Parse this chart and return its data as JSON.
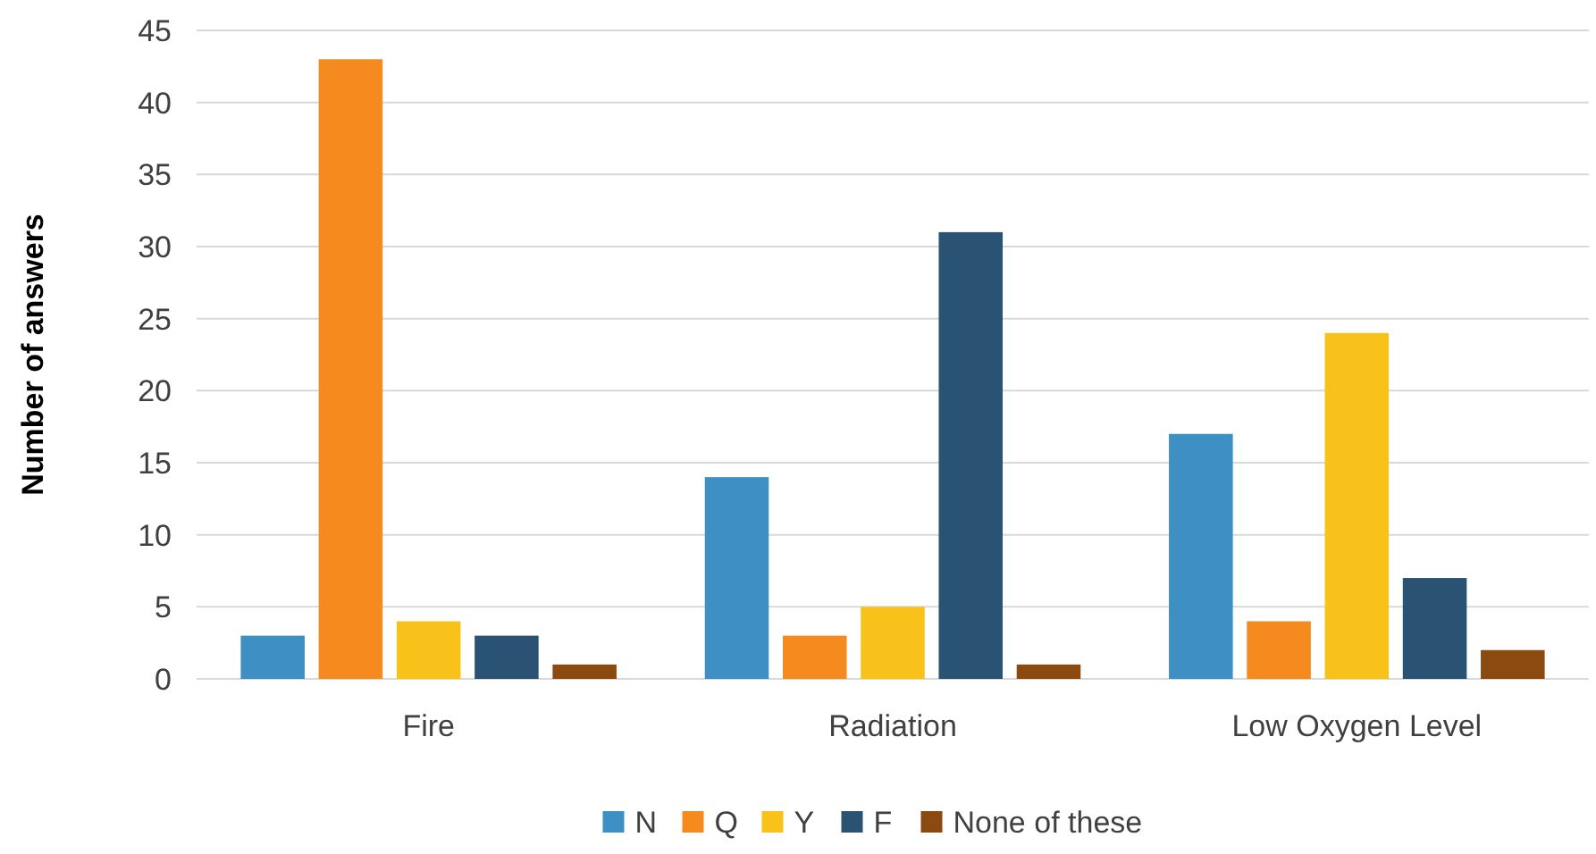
{
  "chart_data": {
    "type": "bar",
    "ylabel": "Number of answers",
    "categories": [
      "Fire",
      "Radiation",
      "Low Oxygen Level"
    ],
    "series": [
      {
        "name": "N",
        "color": "#3d8fc4",
        "values": [
          3,
          14,
          17
        ]
      },
      {
        "name": "Q",
        "color": "#f58a1f",
        "values": [
          43,
          3,
          4
        ]
      },
      {
        "name": "Y",
        "color": "#f8c21a",
        "values": [
          4,
          5,
          24
        ]
      },
      {
        "name": "F",
        "color": "#2a5273",
        "values": [
          3,
          31,
          7
        ]
      },
      {
        "name": "None of these",
        "color": "#8b4a10",
        "values": [
          1,
          1,
          2
        ]
      }
    ],
    "ylim": [
      0,
      45
    ],
    "yticks": [
      0,
      5,
      10,
      15,
      20,
      25,
      30,
      35,
      40,
      45
    ],
    "grid": "y",
    "legend": "bottom"
  }
}
